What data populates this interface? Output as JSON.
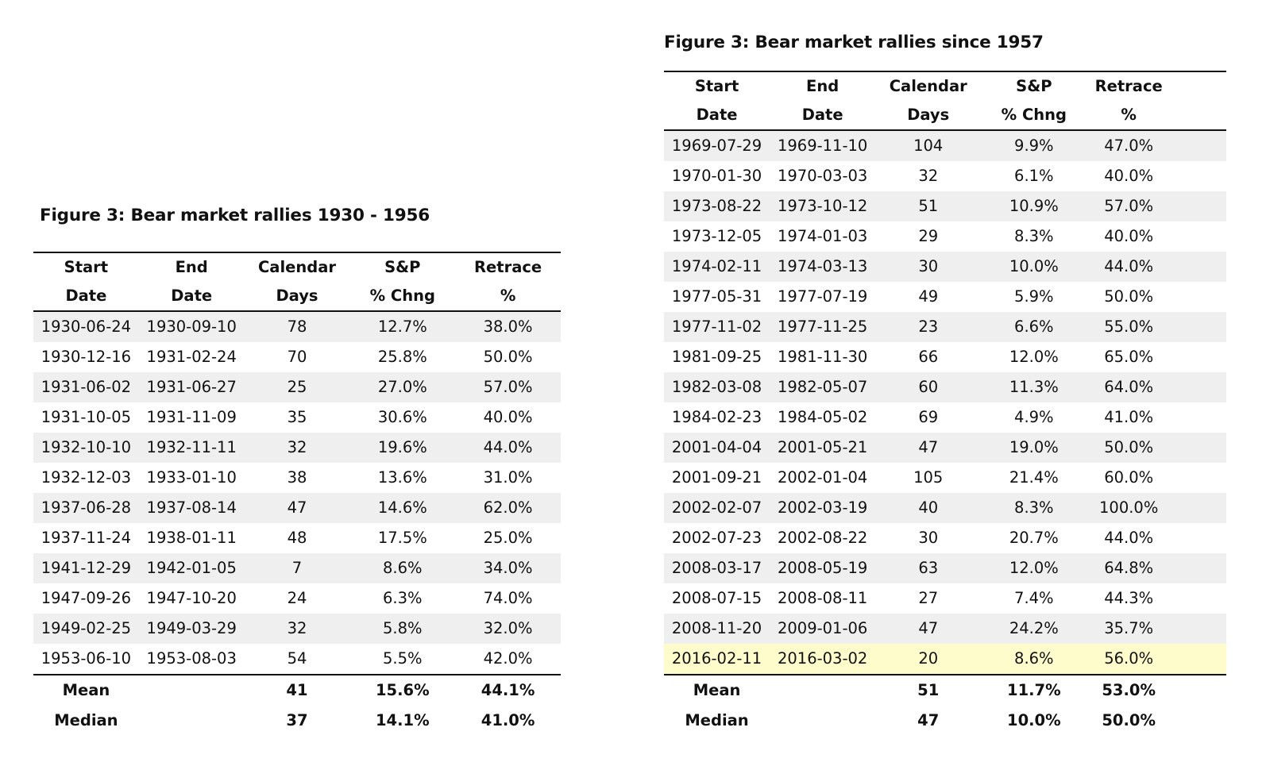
{
  "headers": {
    "start": [
      "Start",
      "Date"
    ],
    "end": [
      "End",
      "Date"
    ],
    "days": [
      "Calendar",
      "Days"
    ],
    "sp": [
      "S&P",
      "% Chng"
    ],
    "retrace": [
      "Retrace",
      "%"
    ]
  },
  "left": {
    "title": "Figure 3: Bear market rallies 1930 - 1956",
    "rows": [
      {
        "start": "1930-06-24",
        "end": "1930-09-10",
        "days": "78",
        "sp": "12.7%",
        "retrace": "38.0%"
      },
      {
        "start": "1930-12-16",
        "end": "1931-02-24",
        "days": "70",
        "sp": "25.8%",
        "retrace": "50.0%"
      },
      {
        "start": "1931-06-02",
        "end": "1931-06-27",
        "days": "25",
        "sp": "27.0%",
        "retrace": "57.0%"
      },
      {
        "start": "1931-10-05",
        "end": "1931-11-09",
        "days": "35",
        "sp": "30.6%",
        "retrace": "40.0%"
      },
      {
        "start": "1932-10-10",
        "end": "1932-11-11",
        "days": "32",
        "sp": "19.6%",
        "retrace": "44.0%"
      },
      {
        "start": "1932-12-03",
        "end": "1933-01-10",
        "days": "38",
        "sp": "13.6%",
        "retrace": "31.0%"
      },
      {
        "start": "1937-06-28",
        "end": "1937-08-14",
        "days": "47",
        "sp": "14.6%",
        "retrace": "62.0%"
      },
      {
        "start": "1937-11-24",
        "end": "1938-01-11",
        "days": "48",
        "sp": "17.5%",
        "retrace": "25.0%"
      },
      {
        "start": "1941-12-29",
        "end": "1942-01-05",
        "days": "7",
        "sp": "8.6%",
        "retrace": "34.0%"
      },
      {
        "start": "1947-09-26",
        "end": "1947-10-20",
        "days": "24",
        "sp": "6.3%",
        "retrace": "74.0%"
      },
      {
        "start": "1949-02-25",
        "end": "1949-03-29",
        "days": "32",
        "sp": "5.8%",
        "retrace": "32.0%"
      },
      {
        "start": "1953-06-10",
        "end": "1953-08-03",
        "days": "54",
        "sp": "5.5%",
        "retrace": "42.0%"
      }
    ],
    "summary": [
      {
        "label": "Mean",
        "days": "41",
        "sp": "15.6%",
        "retrace": "44.1%"
      },
      {
        "label": "Median",
        "days": "37",
        "sp": "14.1%",
        "retrace": "41.0%"
      }
    ]
  },
  "right": {
    "title": "Figure 3: Bear market rallies since 1957",
    "rows": [
      {
        "start": "1969-07-29",
        "end": "1969-11-10",
        "days": "104",
        "sp": "9.9%",
        "retrace": "47.0%"
      },
      {
        "start": "1970-01-30",
        "end": "1970-03-03",
        "days": "32",
        "sp": "6.1%",
        "retrace": "40.0%"
      },
      {
        "start": "1973-08-22",
        "end": "1973-10-12",
        "days": "51",
        "sp": "10.9%",
        "retrace": "57.0%"
      },
      {
        "start": "1973-12-05",
        "end": "1974-01-03",
        "days": "29",
        "sp": "8.3%",
        "retrace": "40.0%"
      },
      {
        "start": "1974-02-11",
        "end": "1974-03-13",
        "days": "30",
        "sp": "10.0%",
        "retrace": "44.0%"
      },
      {
        "start": "1977-05-31",
        "end": "1977-07-19",
        "days": "49",
        "sp": "5.9%",
        "retrace": "50.0%"
      },
      {
        "start": "1977-11-02",
        "end": "1977-11-25",
        "days": "23",
        "sp": "6.6%",
        "retrace": "55.0%"
      },
      {
        "start": "1981-09-25",
        "end": "1981-11-30",
        "days": "66",
        "sp": "12.0%",
        "retrace": "65.0%"
      },
      {
        "start": "1982-03-08",
        "end": "1982-05-07",
        "days": "60",
        "sp": "11.3%",
        "retrace": "64.0%"
      },
      {
        "start": "1984-02-23",
        "end": "1984-05-02",
        "days": "69",
        "sp": "4.9%",
        "retrace": "41.0%"
      },
      {
        "start": "2001-04-04",
        "end": "2001-05-21",
        "days": "47",
        "sp": "19.0%",
        "retrace": "50.0%"
      },
      {
        "start": "2001-09-21",
        "end": "2002-01-04",
        "days": "105",
        "sp": "21.4%",
        "retrace": "60.0%"
      },
      {
        "start": "2002-02-07",
        "end": "2002-03-19",
        "days": "40",
        "sp": "8.3%",
        "retrace": "100.0%"
      },
      {
        "start": "2002-07-23",
        "end": "2002-08-22",
        "days": "30",
        "sp": "20.7%",
        "retrace": "44.0%"
      },
      {
        "start": "2008-03-17",
        "end": "2008-05-19",
        "days": "63",
        "sp": "12.0%",
        "retrace": "64.8%"
      },
      {
        "start": "2008-07-15",
        "end": "2008-08-11",
        "days": "27",
        "sp": "7.4%",
        "retrace": "44.3%"
      },
      {
        "start": "2008-11-20",
        "end": "2009-01-06",
        "days": "47",
        "sp": "24.2%",
        "retrace": "35.7%"
      },
      {
        "start": "2016-02-11",
        "end": "2016-03-02",
        "days": "20",
        "sp": "8.6%",
        "retrace": "56.0%",
        "highlight": true
      }
    ],
    "summary": [
      {
        "label": "Mean",
        "days": "51",
        "sp": "11.7%",
        "retrace": "53.0%"
      },
      {
        "label": "Median",
        "days": "47",
        "sp": "10.0%",
        "retrace": "50.0%"
      }
    ]
  },
  "colors": {
    "shade": "#efefef",
    "highlight": "#fffccb",
    "rule": "#111111"
  }
}
